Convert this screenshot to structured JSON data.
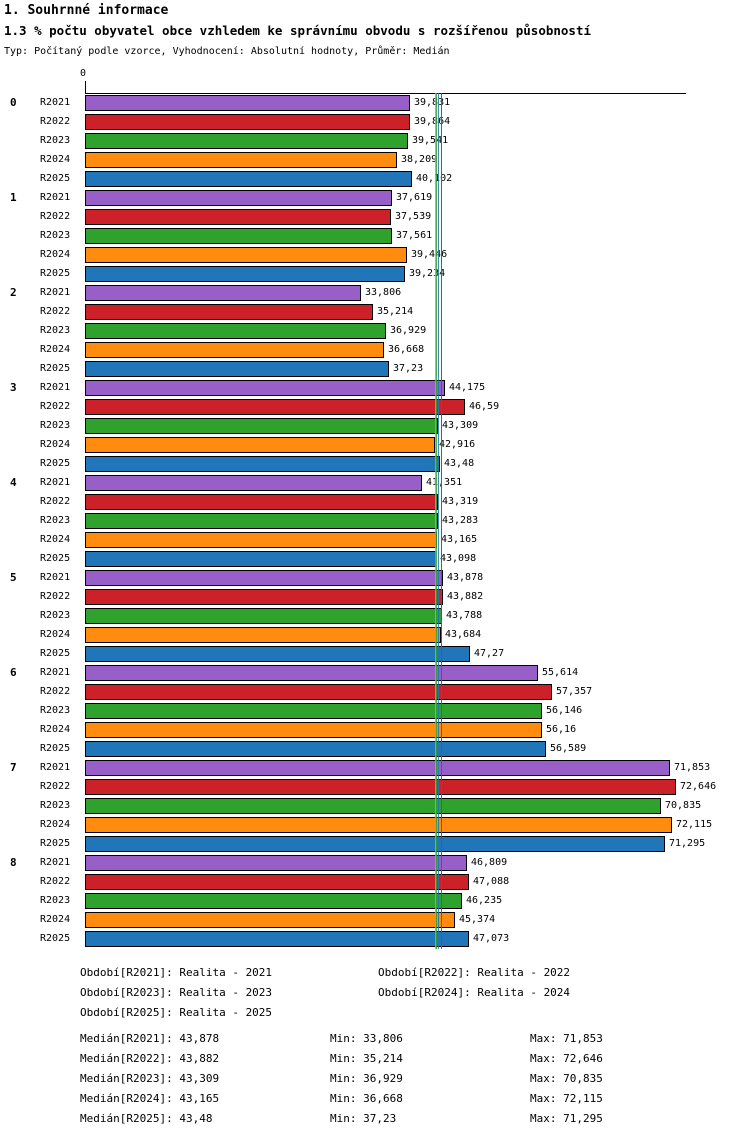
{
  "chart_data": {
    "type": "bar",
    "orientation": "horizontal",
    "title": "1. Souhrnné informace",
    "subtitle": "1.3 % počtu obyvatel obce vzhledem ke správnímu obvodu s rozšířenou působností",
    "meta": "Typ: Počítaný podle vzorce, Vyhodnocení: Absolutní hodnoty, Průměr: Medián",
    "categories": [
      "0",
      "1",
      "2",
      "3",
      "4",
      "5",
      "6",
      "7",
      "8"
    ],
    "series": [
      {
        "name": "R2021",
        "color": "#995FC8",
        "values": [
          39.831,
          37.619,
          33.806,
          44.175,
          41.351,
          43.878,
          55.614,
          71.853,
          46.809
        ]
      },
      {
        "name": "R2022",
        "color": "#CC2128",
        "values": [
          39.864,
          37.539,
          35.214,
          46.59,
          43.319,
          43.882,
          57.357,
          72.646,
          47.088
        ]
      },
      {
        "name": "R2023",
        "color": "#2FA12D",
        "values": [
          39.541,
          37.561,
          36.929,
          43.309,
          43.283,
          43.788,
          56.146,
          70.835,
          46.235
        ]
      },
      {
        "name": "R2024",
        "color": "#FF8C0E",
        "values": [
          38.209,
          39.446,
          36.668,
          42.916,
          43.165,
          43.684,
          56.16,
          72.115,
          45.374
        ]
      },
      {
        "name": "R2025",
        "color": "#2176B9",
        "values": [
          40.102,
          39.234,
          37.23,
          43.48,
          43.098,
          47.27,
          56.589,
          71.295,
          47.073
        ]
      }
    ],
    "medians": {
      "R2021": 43.878,
      "R2022": 43.882,
      "R2023": 43.309,
      "R2024": 43.165,
      "R2025": 43.48
    },
    "axis": {
      "zero_label": "0",
      "min": 0,
      "max": 74
    },
    "legend_position": "bottom",
    "grid": false
  },
  "legend": {
    "periods": [
      "Období[R2021]: Realita - 2021",
      "Období[R2022]: Realita - 2022",
      "Období[R2023]: Realita - 2023",
      "Období[R2024]: Realita - 2024",
      "Období[R2025]: Realita - 2025"
    ],
    "stats": [
      {
        "median": "Medián[R2021]: 43,878",
        "min": "Min: 33,806",
        "max": "Max: 71,853"
      },
      {
        "median": "Medián[R2022]: 43,882",
        "min": "Min: 35,214",
        "max": "Max: 72,646"
      },
      {
        "median": "Medián[R2023]: 43,309",
        "min": "Min: 36,929",
        "max": "Max: 70,835"
      },
      {
        "median": "Medián[R2024]: 43,165",
        "min": "Min: 36,668",
        "max": "Max: 72,115"
      },
      {
        "median": "Medián[R2025]: 43,48",
        "min": "Min: 37,23",
        "max": "Max: 71,295"
      }
    ]
  }
}
